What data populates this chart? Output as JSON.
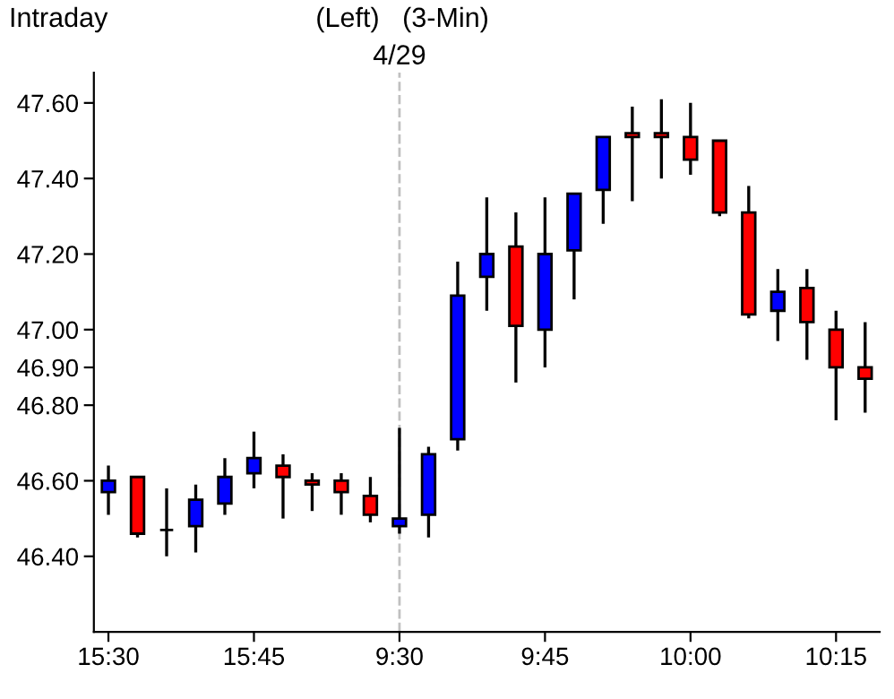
{
  "chart_data": {
    "type": "candlestick",
    "title": "Intraday",
    "subtitle": "(Left)   (3-Min)",
    "categories": [
      "15:30",
      null,
      null,
      null,
      null,
      "15:45",
      null,
      null,
      null,
      null,
      "9:30",
      null,
      null,
      null,
      null,
      "9:45",
      null,
      null,
      null,
      null,
      "10:00",
      null,
      null,
      null,
      null,
      "10:15",
      null
    ],
    "ohlc": [
      [
        46.57,
        46.64,
        46.51,
        46.6
      ],
      [
        46.61,
        46.61,
        46.45,
        46.46
      ],
      [
        46.47,
        46.58,
        46.4,
        46.47
      ],
      [
        46.48,
        46.59,
        46.41,
        46.55
      ],
      [
        46.54,
        46.66,
        46.51,
        46.61
      ],
      [
        46.62,
        46.73,
        46.58,
        46.66
      ],
      [
        46.64,
        46.67,
        46.5,
        46.61
      ],
      [
        46.6,
        46.62,
        46.52,
        46.59
      ],
      [
        46.6,
        46.62,
        46.51,
        46.57
      ],
      [
        46.56,
        46.61,
        46.49,
        46.51
      ],
      [
        46.48,
        46.74,
        46.46,
        46.5
      ],
      [
        46.51,
        46.69,
        46.45,
        46.67
      ],
      [
        46.71,
        47.18,
        46.68,
        47.09
      ],
      [
        47.14,
        47.35,
        47.05,
        47.2
      ],
      [
        47.22,
        47.31,
        46.86,
        47.01
      ],
      [
        47.0,
        47.35,
        46.9,
        47.2
      ],
      [
        47.21,
        47.36,
        47.08,
        47.36
      ],
      [
        47.37,
        47.51,
        47.28,
        47.51
      ],
      [
        47.52,
        47.59,
        47.34,
        47.51
      ],
      [
        47.52,
        47.61,
        47.4,
        47.51
      ],
      [
        47.51,
        47.6,
        47.41,
        47.45
      ],
      [
        47.5,
        47.5,
        47.3,
        47.31
      ],
      [
        47.31,
        47.38,
        47.03,
        47.04
      ],
      [
        47.05,
        47.16,
        46.97,
        47.1
      ],
      [
        47.11,
        47.16,
        46.92,
        47.02
      ],
      [
        47.0,
        47.05,
        46.76,
        46.9
      ],
      [
        46.9,
        47.02,
        46.78,
        46.87
      ]
    ],
    "colors": [
      "#0000ff",
      "#ff0000",
      "#000000",
      "#0000ff",
      "#0000ff",
      "#0000ff",
      "#ff0000",
      "#ff0000",
      "#ff0000",
      "#ff0000",
      "#0000ff",
      "#0000ff",
      "#0000ff",
      "#0000ff",
      "#ff0000",
      "#0000ff",
      "#0000ff",
      "#0000ff",
      "#ff0000",
      "#ff0000",
      "#ff0000",
      "#ff0000",
      "#ff0000",
      "#0000ff",
      "#ff0000",
      "#ff0000",
      "#ff0000"
    ],
    "ylim": [
      46.2,
      47.68
    ],
    "yticks": [
      {
        "value": 46.4,
        "label": "46.40"
      },
      {
        "value": 46.6,
        "label": "46.60"
      },
      {
        "value": 46.8,
        "label": "46.80"
      },
      {
        "value": 46.9,
        "label": "46.90"
      },
      {
        "value": 47.0,
        "label": "47.00"
      },
      {
        "value": 47.2,
        "label": "47.20"
      },
      {
        "value": 47.4,
        "label": "47.40"
      },
      {
        "value": 47.6,
        "label": "47.60"
      }
    ],
    "ref_lines": [
      {
        "axis": "x",
        "value": "9:30",
        "label": "4/29",
        "color": "#c0c0c0",
        "line_style": "dashed"
      }
    ],
    "grid": false,
    "legend": false
  }
}
